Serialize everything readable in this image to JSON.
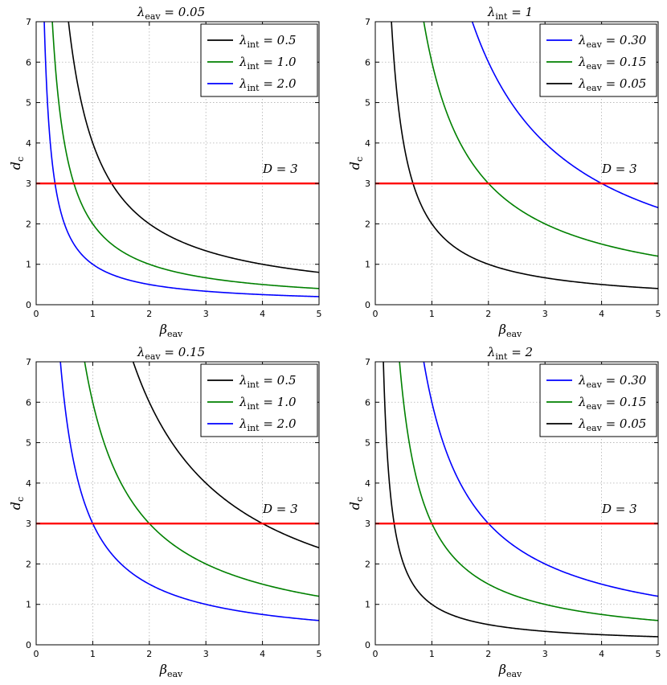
{
  "figure": {
    "name": "critical-dimension-figure"
  },
  "chart_data": [
    {
      "type": "line",
      "title": {
        "symbol": "λ",
        "sub": "eav",
        "rest": " = 0.05"
      },
      "xlabel": {
        "symbol": "β",
        "sub": "eav"
      },
      "ylabel": {
        "symbol": "d",
        "sub": "c"
      },
      "xlim": [
        0,
        5
      ],
      "ylim": [
        0,
        7
      ],
      "xticks": [
        "0",
        "1",
        "2",
        "3",
        "4",
        "5"
      ],
      "yticks": [
        "0",
        "1",
        "2",
        "3",
        "4",
        "5",
        "6",
        "7"
      ],
      "grid": true,
      "legend_position": "top-right",
      "annotation": "D = 3",
      "hline": {
        "y": 3,
        "color": "#ff0000"
      },
      "series": [
        {
          "name": "λint = 0.5",
          "legend": {
            "symbol": "λ",
            "sub": "int",
            "rest": " = 0.5"
          },
          "color": "#000000",
          "k": 4.0
        },
        {
          "name": "λint = 1.0",
          "legend": {
            "symbol": "λ",
            "sub": "int",
            "rest": " = 1.0"
          },
          "color": "#008000",
          "k": 2.0
        },
        {
          "name": "λint = 2.0",
          "legend": {
            "symbol": "λ",
            "sub": "int",
            "rest": " = 2.0"
          },
          "color": "#0000ff",
          "k": 1.0
        }
      ]
    },
    {
      "type": "line",
      "title": {
        "symbol": "λ",
        "sub": "int",
        "rest": " = 1"
      },
      "xlabel": {
        "symbol": "β",
        "sub": "eav"
      },
      "ylabel": {
        "symbol": "d",
        "sub": "c"
      },
      "xlim": [
        0,
        5
      ],
      "ylim": [
        0,
        7
      ],
      "xticks": [
        "0",
        "1",
        "2",
        "3",
        "4",
        "5"
      ],
      "yticks": [
        "0",
        "1",
        "2",
        "3",
        "4",
        "5",
        "6",
        "7"
      ],
      "grid": true,
      "legend_position": "top-right",
      "annotation": "D = 3",
      "hline": {
        "y": 3,
        "color": "#ff0000"
      },
      "series": [
        {
          "name": "λeav = 0.30",
          "legend": {
            "symbol": "λ",
            "sub": "eav",
            "rest": " = 0.30"
          },
          "color": "#0000ff",
          "k": 12.0
        },
        {
          "name": "λeav = 0.15",
          "legend": {
            "symbol": "λ",
            "sub": "eav",
            "rest": " = 0.15"
          },
          "color": "#008000",
          "k": 6.0
        },
        {
          "name": "λeav = 0.05",
          "legend": {
            "symbol": "λ",
            "sub": "eav",
            "rest": " = 0.05"
          },
          "color": "#000000",
          "k": 2.0
        }
      ]
    },
    {
      "type": "line",
      "title": {
        "symbol": "λ",
        "sub": "eav",
        "rest": " = 0.15"
      },
      "xlabel": {
        "symbol": "β",
        "sub": "eav"
      },
      "ylabel": {
        "symbol": "d",
        "sub": "c"
      },
      "xlim": [
        0,
        5
      ],
      "ylim": [
        0,
        7
      ],
      "xticks": [
        "0",
        "1",
        "2",
        "3",
        "4",
        "5"
      ],
      "yticks": [
        "0",
        "1",
        "2",
        "3",
        "4",
        "5",
        "6",
        "7"
      ],
      "grid": true,
      "legend_position": "top-right",
      "annotation": "D = 3",
      "hline": {
        "y": 3,
        "color": "#ff0000"
      },
      "series": [
        {
          "name": "λint = 0.5",
          "legend": {
            "symbol": "λ",
            "sub": "int",
            "rest": " = 0.5"
          },
          "color": "#000000",
          "k": 12.0
        },
        {
          "name": "λint = 1.0",
          "legend": {
            "symbol": "λ",
            "sub": "int",
            "rest": " = 1.0"
          },
          "color": "#008000",
          "k": 6.0
        },
        {
          "name": "λint = 2.0",
          "legend": {
            "symbol": "λ",
            "sub": "int",
            "rest": " = 2.0"
          },
          "color": "#0000ff",
          "k": 3.0
        }
      ]
    },
    {
      "type": "line",
      "title": {
        "symbol": "λ",
        "sub": "int",
        "rest": " = 2"
      },
      "xlabel": {
        "symbol": "β",
        "sub": "eav"
      },
      "ylabel": {
        "symbol": "d",
        "sub": "c"
      },
      "xlim": [
        0,
        5
      ],
      "ylim": [
        0,
        7
      ],
      "xticks": [
        "0",
        "1",
        "2",
        "3",
        "4",
        "5"
      ],
      "yticks": [
        "0",
        "1",
        "2",
        "3",
        "4",
        "5",
        "6",
        "7"
      ],
      "grid": true,
      "legend_position": "top-right",
      "annotation": "D = 3",
      "hline": {
        "y": 3,
        "color": "#ff0000"
      },
      "series": [
        {
          "name": "λeav = 0.30",
          "legend": {
            "symbol": "λ",
            "sub": "eav",
            "rest": " = 0.30"
          },
          "color": "#0000ff",
          "k": 6.0
        },
        {
          "name": "λeav = 0.15",
          "legend": {
            "symbol": "λ",
            "sub": "eav",
            "rest": " = 0.15"
          },
          "color": "#008000",
          "k": 3.0
        },
        {
          "name": "λeav = 0.05",
          "legend": {
            "symbol": "λ",
            "sub": "eav",
            "rest": " = 0.05"
          },
          "color": "#000000",
          "k": 1.0
        }
      ]
    }
  ]
}
